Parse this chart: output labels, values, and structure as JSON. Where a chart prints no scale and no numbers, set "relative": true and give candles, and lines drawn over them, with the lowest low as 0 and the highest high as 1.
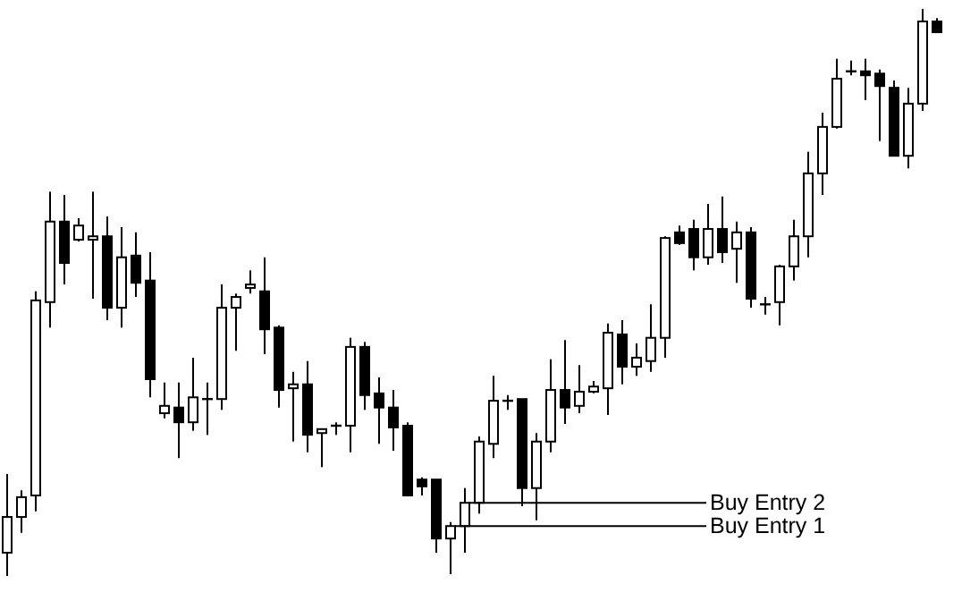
{
  "chart_data": {
    "type": "candlestick",
    "relative": true,
    "categories": [
      null,
      null,
      null,
      null,
      null,
      null,
      null,
      null,
      null,
      null,
      null,
      null,
      null,
      null,
      null,
      null,
      null,
      null,
      null,
      null,
      null,
      null,
      null,
      null,
      null,
      null,
      null,
      null,
      null,
      null,
      null,
      null,
      null,
      null,
      null,
      null,
      null,
      null,
      null,
      null,
      null,
      null,
      null,
      null,
      null,
      null,
      null,
      null,
      null,
      null,
      null,
      null,
      null,
      null,
      null,
      null,
      null,
      null,
      null,
      null,
      null,
      null,
      null,
      null,
      null,
      null
    ],
    "ohlc": [
      [
        0.041,
        0.18,
        0,
        0.104
      ],
      [
        0.104,
        0.151,
        0.076,
        0.139
      ],
      [
        0.142,
        0.502,
        0.114,
        0.486
      ],
      [
        0.483,
        0.678,
        0.438,
        0.625
      ],
      [
        0.625,
        0.672,
        0.514,
        0.552
      ],
      [
        0.593,
        0.631,
        0.59,
        0.618
      ],
      [
        0.593,
        0.678,
        0.489,
        0.599
      ],
      [
        0.599,
        0.634,
        0.451,
        0.473
      ],
      [
        0.473,
        0.615,
        0.438,
        0.562
      ],
      [
        0.565,
        0.606,
        0.492,
        0.517
      ],
      [
        0.521,
        0.571,
        0.315,
        0.347
      ],
      [
        0.287,
        0.341,
        0.278,
        0.3
      ],
      [
        0.297,
        0.341,
        0.208,
        0.271
      ],
      [
        0.271,
        0.385,
        0.256,
        0.315
      ],
      [
        0.309,
        0.341,
        0.249,
        0.312
      ],
      [
        0.312,
        0.514,
        0.293,
        0.473
      ],
      [
        0.473,
        0.498,
        0.397,
        0.492
      ],
      [
        0.508,
        0.539,
        0.498,
        0.514
      ],
      [
        0.502,
        0.562,
        0.391,
        0.435
      ],
      [
        0.438,
        0.442,
        0.297,
        0.328
      ],
      [
        0.331,
        0.36,
        0.237,
        0.338
      ],
      [
        0.338,
        0.379,
        0.218,
        0.249
      ],
      [
        0.252,
        0.259,
        0.192,
        0.259
      ],
      [
        0.262,
        0.271,
        0.249,
        0.265
      ],
      [
        0.265,
        0.42,
        0.218,
        0.404
      ],
      [
        0.404,
        0.413,
        0.293,
        0.319
      ],
      [
        0.322,
        0.35,
        0.233,
        0.297
      ],
      [
        0.297,
        0.328,
        0.221,
        0.262
      ],
      [
        0.265,
        0.271,
        0.142,
        0.142
      ],
      [
        0.17,
        0.174,
        0.142,
        0.158
      ],
      [
        0.17,
        0.17,
        0.041,
        0.066
      ],
      [
        0.066,
        0.095,
        0.003,
        0.088
      ],
      [
        0.088,
        0.155,
        0.041,
        0.129
      ],
      [
        0.129,
        0.246,
        0.11,
        0.237
      ],
      [
        0.233,
        0.353,
        0.208,
        0.309
      ],
      [
        0.306,
        0.319,
        0.293,
        0.309
      ],
      [
        0.312,
        0.312,
        0.123,
        0.155
      ],
      [
        0.155,
        0.252,
        0.098,
        0.237
      ],
      [
        0.237,
        0.382,
        0.218,
        0.328
      ],
      [
        0.328,
        0.416,
        0.268,
        0.297
      ],
      [
        0.3,
        0.372,
        0.287,
        0.325
      ],
      [
        0.325,
        0.344,
        0.322,
        0.334
      ],
      [
        0.331,
        0.445,
        0.284,
        0.429
      ],
      [
        0.426,
        0.451,
        0.338,
        0.369
      ],
      [
        0.369,
        0.41,
        0.353,
        0.385
      ],
      [
        0.379,
        0.479,
        0.36,
        0.42
      ],
      [
        0.42,
        0.599,
        0.385,
        0.596
      ],
      [
        0.606,
        0.618,
        0.584,
        0.587
      ],
      [
        0.612,
        0.628,
        0.539,
        0.562
      ],
      [
        0.562,
        0.656,
        0.549,
        0.612
      ],
      [
        0.612,
        0.669,
        0.552,
        0.571
      ],
      [
        0.577,
        0.625,
        0.517,
        0.606
      ],
      [
        0.606,
        0.615,
        0.473,
        0.489
      ],
      [
        0.479,
        0.492,
        0.461,
        0.479
      ],
      [
        0.483,
        0.549,
        0.442,
        0.546
      ],
      [
        0.546,
        0.628,
        0.521,
        0.599
      ],
      [
        0.599,
        0.748,
        0.562,
        0.71
      ],
      [
        0.71,
        0.817,
        0.672,
        0.792
      ],
      [
        0.792,
        0.912,
        0.789,
        0.877
      ],
      [
        0.89,
        0.909,
        0.883,
        0.89
      ],
      [
        0.89,
        0.912,
        0.839,
        0.883
      ],
      [
        0.886,
        0.893,
        0.767,
        0.864
      ],
      [
        0.861,
        0.874,
        0.741,
        0.741
      ],
      [
        0.741,
        0.861,
        0.719,
        0.833
      ],
      [
        0.833,
        1,
        0.82,
        0.978
      ],
      [
        0.978,
        0.984,
        0.959,
        0.959
      ]
    ],
    "ref_lines": [
      {
        "axis": "y",
        "value": 0.129,
        "label": "Buy Entry 2"
      },
      {
        "axis": "y",
        "value": 0.088,
        "label": "Buy Entry 1"
      }
    ]
  }
}
